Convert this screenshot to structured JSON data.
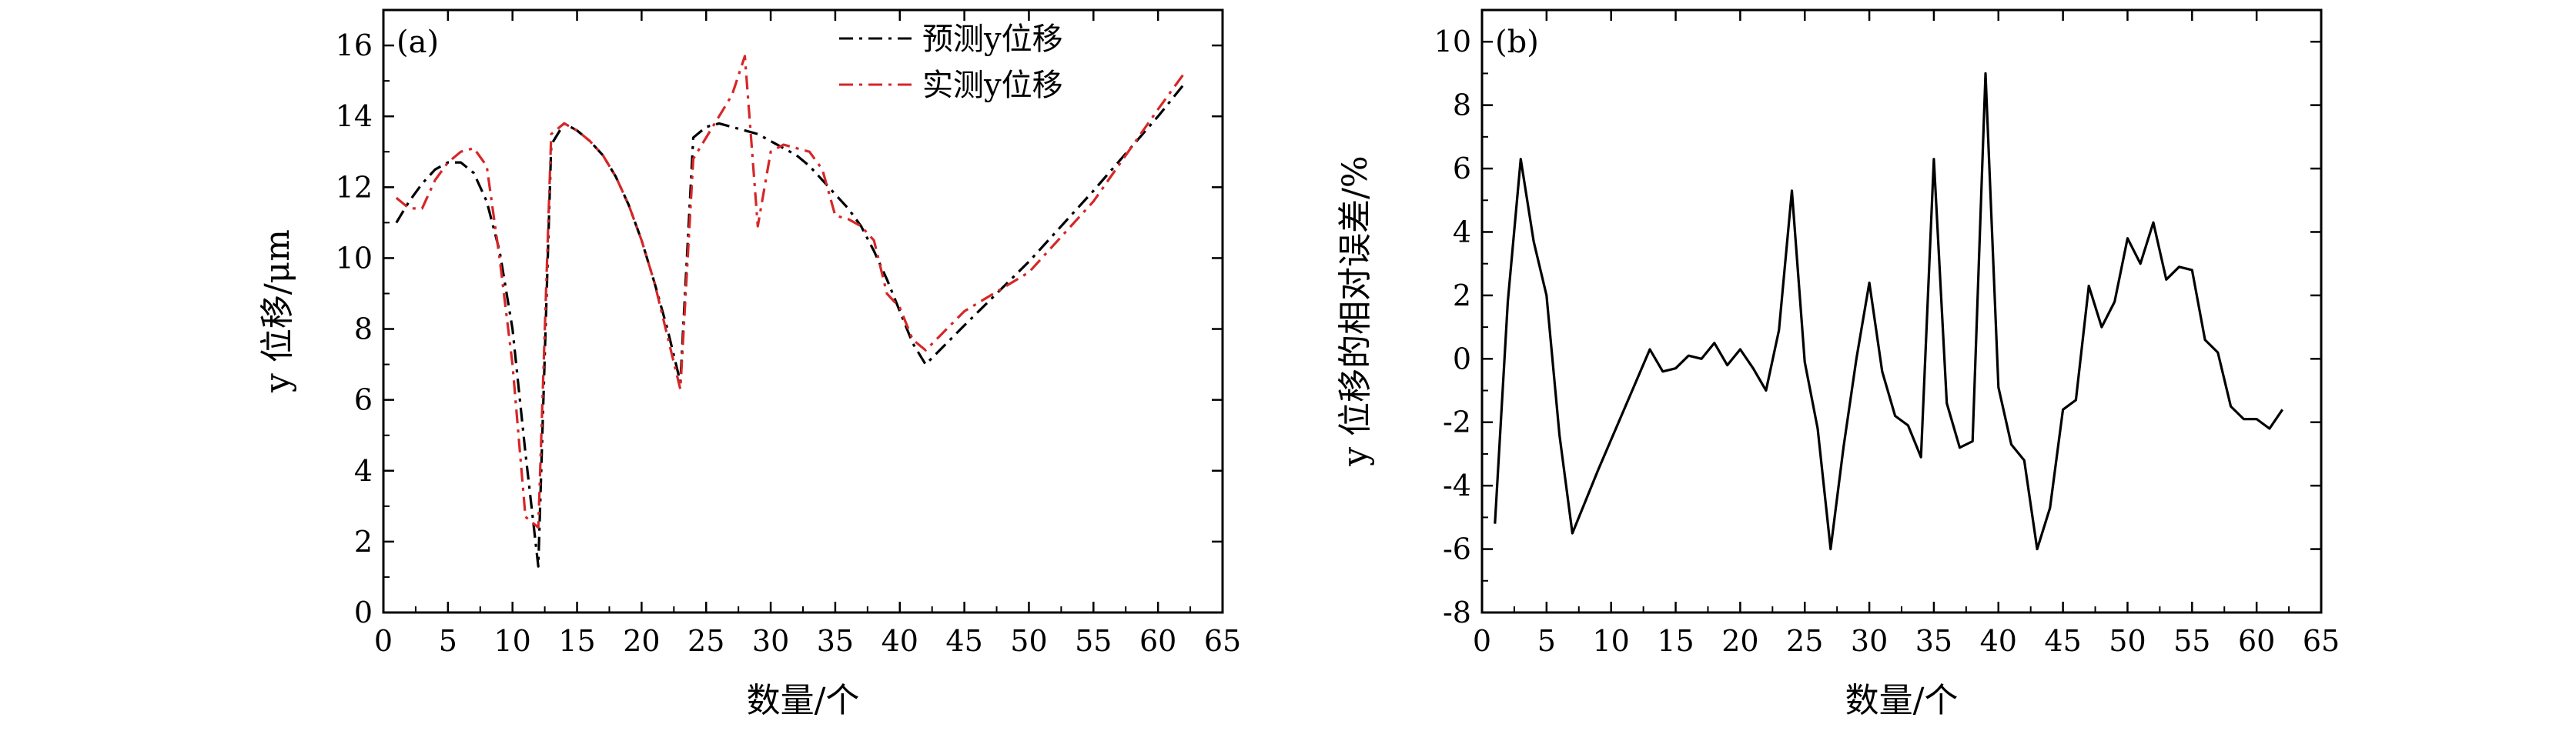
{
  "chart_data": [
    {
      "type": "line",
      "panel_label": "(a)",
      "xlabel": "数量/个",
      "ylabel": "y 位移/μm",
      "xlim": [
        0,
        65
      ],
      "ylim": [
        0,
        17
      ],
      "x_ticks": [
        0,
        5,
        10,
        15,
        20,
        25,
        30,
        35,
        40,
        45,
        50,
        55,
        60,
        65
      ],
      "y_ticks": [
        0,
        2,
        4,
        6,
        8,
        10,
        12,
        14,
        16
      ],
      "grid": false,
      "legend_position": "top-center",
      "series": [
        {
          "name": "预测y位移",
          "color": "#000000",
          "style": "dash-dot",
          "points": [
            [
              1,
              11.0
            ],
            [
              2,
              11.6
            ],
            [
              3,
              12.1
            ],
            [
              4,
              12.5
            ],
            [
              5,
              12.7
            ],
            [
              6,
              12.7
            ],
            [
              7,
              12.4
            ],
            [
              8,
              11.6
            ],
            [
              9,
              10.2
            ],
            [
              10,
              8.0
            ],
            [
              11,
              4.5
            ],
            [
              12,
              1.3
            ],
            [
              13,
              13.2
            ],
            [
              14,
              13.8
            ],
            [
              15,
              13.6
            ],
            [
              16,
              13.3
            ],
            [
              17,
              12.9
            ],
            [
              18,
              12.3
            ],
            [
              19,
              11.5
            ],
            [
              20,
              10.5
            ],
            [
              21,
              9.3
            ],
            [
              22,
              8.0
            ],
            [
              23,
              6.5
            ],
            [
              24,
              13.4
            ],
            [
              25,
              13.7
            ],
            [
              26,
              13.8
            ],
            [
              27,
              13.7
            ],
            [
              28,
              13.6
            ],
            [
              29,
              13.5
            ],
            [
              30,
              13.3
            ],
            [
              31,
              13.1
            ],
            [
              32,
              12.9
            ],
            [
              33,
              12.6
            ],
            [
              34,
              12.2
            ],
            [
              35,
              11.8
            ],
            [
              36,
              11.4
            ],
            [
              37,
              10.9
            ],
            [
              38,
              10.2
            ],
            [
              39,
              9.4
            ],
            [
              40,
              8.5
            ],
            [
              41,
              7.6
            ],
            [
              42,
              7.0
            ],
            [
              45,
              8.1
            ],
            [
              50,
              9.9
            ],
            [
              55,
              11.9
            ],
            [
              60,
              14.0
            ],
            [
              62,
              14.9
            ]
          ]
        },
        {
          "name": "实测y位移",
          "color": "#d62728",
          "style": "dash-dot",
          "points": [
            [
              1,
              11.7
            ],
            [
              2,
              11.4
            ],
            [
              3,
              11.4
            ],
            [
              4,
              12.2
            ],
            [
              5,
              12.7
            ],
            [
              6,
              13.0
            ],
            [
              7,
              13.1
            ],
            [
              8,
              12.6
            ],
            [
              9,
              10.0
            ],
            [
              10,
              7.0
            ],
            [
              11,
              2.7
            ],
            [
              12,
              2.4
            ],
            [
              13,
              13.5
            ],
            [
              14,
              13.8
            ],
            [
              15,
              13.6
            ],
            [
              16,
              13.3
            ],
            [
              17,
              12.9
            ],
            [
              18,
              12.3
            ],
            [
              19,
              11.5
            ],
            [
              20,
              10.5
            ],
            [
              21,
              9.3
            ],
            [
              22,
              7.8
            ],
            [
              23,
              6.3
            ],
            [
              24,
              12.8
            ],
            [
              25,
              13.4
            ],
            [
              26,
              14.0
            ],
            [
              27,
              14.6
            ],
            [
              28,
              15.7
            ],
            [
              29,
              10.9
            ],
            [
              30,
              13.0
            ],
            [
              31,
              13.2
            ],
            [
              32,
              13.1
            ],
            [
              33,
              13.0
            ],
            [
              34,
              12.5
            ],
            [
              35,
              11.2
            ],
            [
              36,
              11.1
            ],
            [
              37,
              10.9
            ],
            [
              38,
              10.5
            ],
            [
              39,
              9.0
            ],
            [
              40,
              8.6
            ],
            [
              41,
              7.7
            ],
            [
              42,
              7.4
            ],
            [
              45,
              8.5
            ],
            [
              50,
              9.6
            ],
            [
              55,
              11.6
            ],
            [
              60,
              14.2
            ],
            [
              62,
              15.2
            ]
          ]
        }
      ]
    },
    {
      "type": "line",
      "panel_label": "(b)",
      "xlabel": "数量/个",
      "ylabel": "y 位移的相对误差/%",
      "xlim": [
        0,
        65
      ],
      "ylim": [
        -8,
        11
      ],
      "x_ticks": [
        0,
        5,
        10,
        15,
        20,
        25,
        30,
        35,
        40,
        45,
        50,
        55,
        60,
        65
      ],
      "y_ticks": [
        -8,
        -6,
        -4,
        -2,
        0,
        2,
        4,
        6,
        8,
        10
      ],
      "grid": false,
      "series": [
        {
          "color": "#000000",
          "style": "solid",
          "points": [
            [
              1,
              -5.2
            ],
            [
              2,
              1.8
            ],
            [
              3,
              6.3
            ],
            [
              4,
              3.7
            ],
            [
              5,
              2.0
            ],
            [
              6,
              -2.4
            ],
            [
              7,
              -5.5
            ],
            [
              9,
              -3.5
            ],
            [
              11,
              -1.6
            ],
            [
              13,
              0.3
            ],
            [
              14,
              -0.4
            ],
            [
              15,
              -0.3
            ],
            [
              16,
              0.1
            ],
            [
              17,
              0.0
            ],
            [
              18,
              0.5
            ],
            [
              19,
              -0.2
            ],
            [
              20,
              0.3
            ],
            [
              21,
              -0.3
            ],
            [
              22,
              -1.0
            ],
            [
              23,
              0.9
            ],
            [
              24,
              5.3
            ],
            [
              25,
              -0.1
            ],
            [
              26,
              -2.2
            ],
            [
              27,
              -6.0
            ],
            [
              28,
              -2.8
            ],
            [
              29,
              0.0
            ],
            [
              30,
              2.4
            ],
            [
              31,
              -0.4
            ],
            [
              32,
              -1.8
            ],
            [
              33,
              -2.1
            ],
            [
              34,
              -3.1
            ],
            [
              35,
              6.3
            ],
            [
              36,
              -1.4
            ],
            [
              37,
              -2.8
            ],
            [
              38,
              -2.6
            ],
            [
              39,
              9.0
            ],
            [
              40,
              -0.9
            ],
            [
              41,
              -2.7
            ],
            [
              42,
              -3.2
            ],
            [
              43,
              -6.0
            ],
            [
              44,
              -4.7
            ],
            [
              45,
              -1.6
            ],
            [
              46,
              -1.3
            ],
            [
              47,
              2.3
            ],
            [
              48,
              1.0
            ],
            [
              49,
              1.8
            ],
            [
              50,
              3.8
            ],
            [
              51,
              3.0
            ],
            [
              52,
              4.3
            ],
            [
              53,
              2.5
            ],
            [
              54,
              2.9
            ],
            [
              55,
              2.8
            ],
            [
              56,
              0.6
            ],
            [
              57,
              0.2
            ],
            [
              58,
              -1.5
            ],
            [
              59,
              -1.9
            ],
            [
              60,
              -1.9
            ],
            [
              61,
              -2.2
            ],
            [
              62,
              -1.6
            ]
          ]
        }
      ]
    }
  ]
}
